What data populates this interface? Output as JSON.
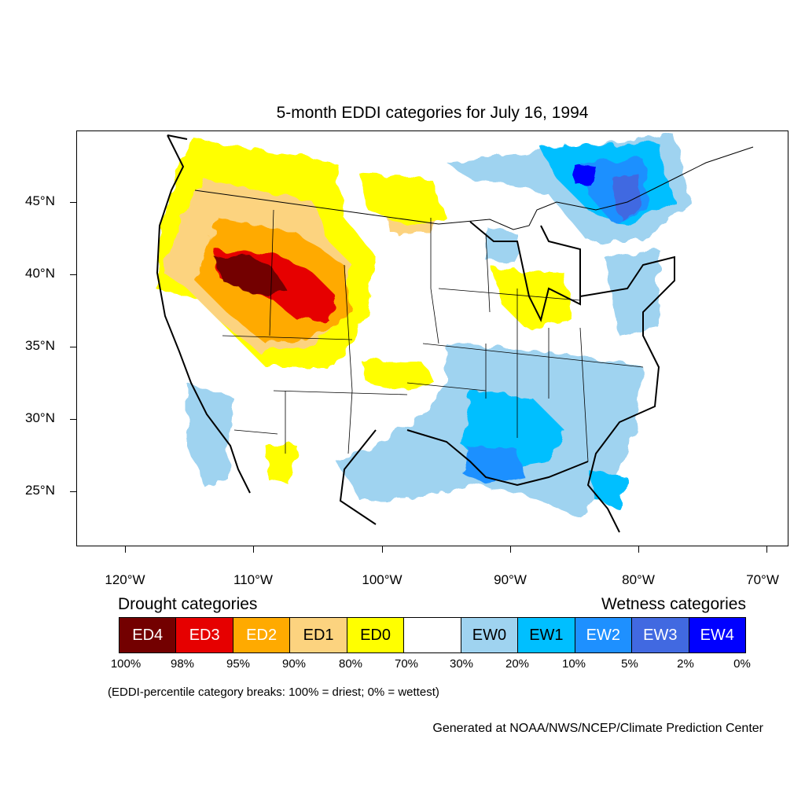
{
  "title": "5-month EDDI categories for July 16, 1994",
  "lat_labels": [
    "45°N",
    "40°N",
    "35°N",
    "30°N",
    "25°N"
  ],
  "lon_labels": [
    "120°W",
    "110°W",
    "100°W",
    "90°W",
    "80°W",
    "70°W"
  ],
  "legend": {
    "drought_title": "Drought categories",
    "wetness_title": "Wetness categories",
    "categories": [
      {
        "label": "ED4",
        "color": "#730000",
        "text_color": "#ffffff"
      },
      {
        "label": "ED3",
        "color": "#e60000",
        "text_color": "#ffffff"
      },
      {
        "label": "ED2",
        "color": "#ffaa00",
        "text_color": "#ffffff"
      },
      {
        "label": "ED1",
        "color": "#fcd37f",
        "text_color": "#000000"
      },
      {
        "label": "ED0",
        "color": "#ffff00",
        "text_color": "#000000"
      },
      {
        "label": "",
        "color": "#ffffff",
        "text_color": "#000000"
      },
      {
        "label": "EW0",
        "color": "#9fd3f0",
        "text_color": "#000000"
      },
      {
        "label": "EW1",
        "color": "#00bfff",
        "text_color": "#000000"
      },
      {
        "label": "EW2",
        "color": "#1e90ff",
        "text_color": "#ffffff"
      },
      {
        "label": "EW3",
        "color": "#4169e1",
        "text_color": "#ffffff"
      },
      {
        "label": "EW4",
        "color": "#0000ff",
        "text_color": "#ffffff"
      }
    ],
    "percentiles": [
      "100%",
      "98%",
      "95%",
      "90%",
      "80%",
      "70%",
      "30%",
      "20%",
      "10%",
      "5%",
      "2%",
      "0%"
    ]
  },
  "breaks_note": "(EDDI-percentile category breaks: 100% = driest; 0% = wettest)",
  "credit": "Generated at NOAA/NWS/NCEP/Climate Prediction Center"
}
